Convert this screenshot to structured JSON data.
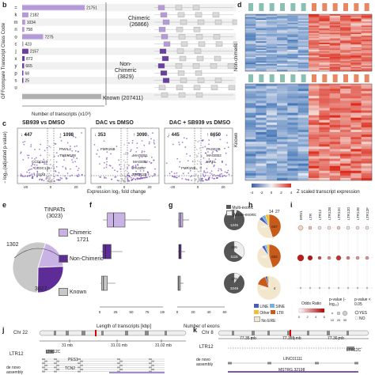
{
  "panel_labels": {
    "b": "b",
    "c": "c",
    "d": "d",
    "e": "e",
    "f": "f",
    "g": "g",
    "h": "h",
    "i": "i",
    "j": "j",
    "k": "k"
  },
  "panel_b": {
    "ylabel": "GFFcompare Transcript Class Code",
    "xlabel": "Number of transcripts (x10³)",
    "classes": [
      {
        "code": "=",
        "count": "21751",
        "color": "#b59ad8"
      },
      {
        "code": "k",
        "count": "2182",
        "color": "#b59ad8"
      },
      {
        "code": "m",
        "count": "1034",
        "color": "#b59ad8"
      },
      {
        "code": "n",
        "count": "758",
        "color": "#b59ad8"
      },
      {
        "code": "o",
        "count": "7275",
        "color": "#b59ad8"
      },
      {
        "code": "c",
        "count": "423",
        "color": "#b59ad8"
      },
      {
        "code": "j",
        "count": "2157",
        "color": "#6a3fa0"
      },
      {
        "code": "x",
        "count": "872",
        "color": "#6a3fa0"
      },
      {
        "code": "y",
        "count": "665",
        "color": "#6a3fa0"
      },
      {
        "code": "p",
        "count": "68",
        "color": "#6a3fa0"
      },
      {
        "code": "s",
        "count": "25",
        "color": "#6a3fa0"
      },
      {
        "code": "u",
        "count": "",
        "color": "#999999"
      }
    ],
    "chimeric_label": "Chimeric\n(26866)",
    "nonchimeric_label": "Non-\nChimeric\n(3829)",
    "known_label": "Known (207411)"
  },
  "panel_c": {
    "ylabel": "− log₁₀(adjusted p-value)",
    "xlabel": "Expression log₂ fold change",
    "plots": [
      {
        "title": "SB939 vs DMSO",
        "down": "447",
        "up": "1098",
        "genes": [
          "PIWIL2",
          "TMEM108",
          "CCDC110",
          "CCDC136",
          "SSX4"
        ]
      },
      {
        "title": "DAC vs DMSO",
        "down": "353",
        "up": "3090",
        "genes": [
          "FMR1NB",
          "MAGEB1",
          "MAGEB2",
          "PAGE5",
          "PAGE2B"
        ]
      },
      {
        "title": "DAC + SB939 vs DMSO",
        "down": "445",
        "up": "6650",
        "genes": [
          "PAGE2B",
          "MAGEB2",
          "MAEL",
          "FMR1NB"
        ]
      }
    ]
  },
  "panel_d": {
    "row_labels": [
      "Non-chimeric",
      "Known"
    ],
    "scale_label": "Z scaled transcript expression",
    "scale_ticks": [
      "-4",
      "-2",
      "0",
      "2",
      "4"
    ]
  },
  "panel_e": {
    "title": "TINPATs\n(3023)",
    "slices": [
      {
        "label": "Chimeric",
        "value": 1302,
        "color": "#c9b2e4"
      },
      {
        "label": "Non-Chimeric",
        "value": 1721,
        "color": "#5e2c97"
      },
      {
        "label": "Known",
        "value": 3627,
        "color": "#c8c8c8"
      }
    ],
    "counts": {
      "chimeric": "1302",
      "nonchimeric": "1721",
      "known": "3627"
    }
  },
  "panel_f": {
    "xlabel": "Length of transcripts [kbp]",
    "ticks": [
      "0",
      "25",
      "50",
      "75",
      "100"
    ]
  },
  "panel_g": {
    "xlabel": "Number of exons",
    "ticks": [
      "0",
      "20",
      "40",
      "60"
    ],
    "legend": [
      "Multi-exonic",
      "Mono-exonic"
    ],
    "pies": [
      {
        "a": "57",
        "b": "1245"
      },
      {
        "a": "606",
        "b": "1115"
      },
      {
        "a": "378",
        "b": "3249"
      }
    ]
  },
  "panel_h": {
    "top_counts": [
      "14",
      "27"
    ],
    "pies": [
      {
        "a": "599",
        "b": "637"
      },
      {
        "a": "585",
        "b": "634"
      },
      {
        "a": "3264",
        "b": "4"
      }
    ],
    "legend": [
      "LINE",
      "SINE",
      "Other",
      "LTR",
      "No ERE"
    ]
  },
  "panel_i": {
    "columns": [
      "ERV1",
      "LTR",
      "LTR12",
      "LTR12B",
      "LTR12C",
      "LTR12D",
      "LTR12E",
      "LTR12F"
    ],
    "legend_or": "Odds Ratio",
    "legend_p": "p-value (-log₁₀)",
    "legend_sig": "p-value < 0.05",
    "yes": "YES",
    "no": "NO",
    "or_ticks": [
      "0",
      "2",
      "4",
      "6"
    ],
    "p_ticks": [
      "10",
      "20",
      "30"
    ]
  },
  "panel_j": {
    "chr": "Chr 22",
    "ticks": [
      "31 mb",
      "31.01 mb",
      "31.02 mb"
    ],
    "track1": "LTR12",
    "track2": "de novo\nassembly",
    "genes": [
      "LTR12C",
      "PES1",
      "TCN2"
    ]
  },
  "panel_k": {
    "chr": "Chr 8",
    "ticks": [
      "77.35 mb",
      "77.355 mb",
      "77.36 mb"
    ],
    "track1": "LTR12",
    "track2": "de novo\nassembly",
    "genes": [
      "LTR12C",
      "LINC01111",
      "MSTRG.32198"
    ]
  },
  "colors": {
    "purple": "#6a3fa0",
    "lavender": "#c9b2e4",
    "grey": "#c8c8c8",
    "red": "#d73027",
    "blue": "#2166ac"
  }
}
